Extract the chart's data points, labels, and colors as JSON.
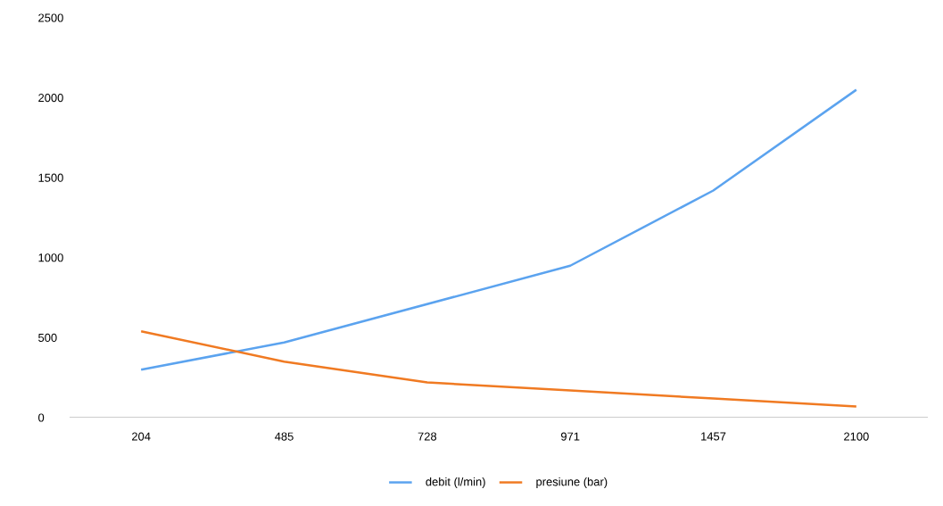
{
  "chart_data": {
    "type": "line",
    "categories": [
      "204",
      "485",
      "728",
      "971",
      "1457",
      "2100"
    ],
    "series": [
      {
        "name": "debit (l/min)",
        "color": "#5ba3ef",
        "values": [
          300,
          470,
          710,
          950,
          1420,
          2050
        ]
      },
      {
        "name": "presiune (bar)",
        "color": "#f07a22",
        "values": [
          540,
          350,
          220,
          170,
          120,
          70
        ]
      }
    ],
    "ylim": [
      0,
      2500
    ],
    "yticks": [
      0,
      500,
      1000,
      1500,
      2000,
      2500
    ],
    "legend": "bottom",
    "marker": "none",
    "line_style": "solid"
  }
}
